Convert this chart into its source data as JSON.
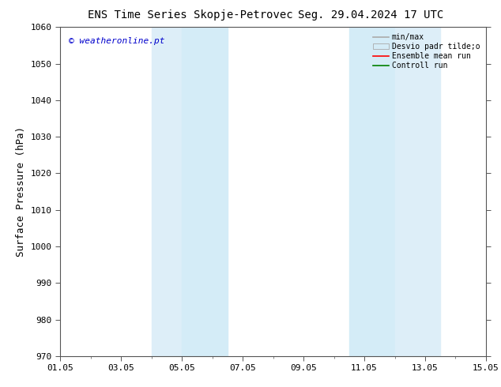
{
  "title": "ENS Time Series Skopje-Petrovec",
  "title_right": "Seg. 29.04.2024 17 UTC",
  "ylabel": "Surface Pressure (hPa)",
  "xlabel_ticks": [
    "01.05",
    "03.05",
    "05.05",
    "07.05",
    "09.05",
    "11.05",
    "13.05",
    "15.05"
  ],
  "xlim": [
    0,
    14
  ],
  "ylim": [
    970,
    1060
  ],
  "yticks": [
    970,
    980,
    990,
    1000,
    1010,
    1020,
    1030,
    1040,
    1050,
    1060
  ],
  "xtick_positions": [
    0,
    2,
    4,
    6,
    8,
    10,
    12,
    14
  ],
  "shaded_regions": [
    {
      "xmin": 3.0,
      "xmax": 4.0,
      "color": "#ddeef8"
    },
    {
      "xmin": 4.0,
      "xmax": 5.5,
      "color": "#d4ecf7"
    },
    {
      "xmin": 9.5,
      "xmax": 11.0,
      "color": "#d4ecf7"
    },
    {
      "xmin": 11.0,
      "xmax": 12.5,
      "color": "#ddeef8"
    }
  ],
  "watermark": "© weatheronline.pt",
  "watermark_color": "#0000cc",
  "legend_entries": [
    "min/max",
    "Desvio padr tilde;o",
    "Ensemble mean run",
    "Controll run"
  ],
  "background_color": "#ffffff",
  "plot_bg_color": "#ffffff",
  "title_fontsize": 10,
  "tick_fontsize": 8,
  "ylabel_fontsize": 9
}
